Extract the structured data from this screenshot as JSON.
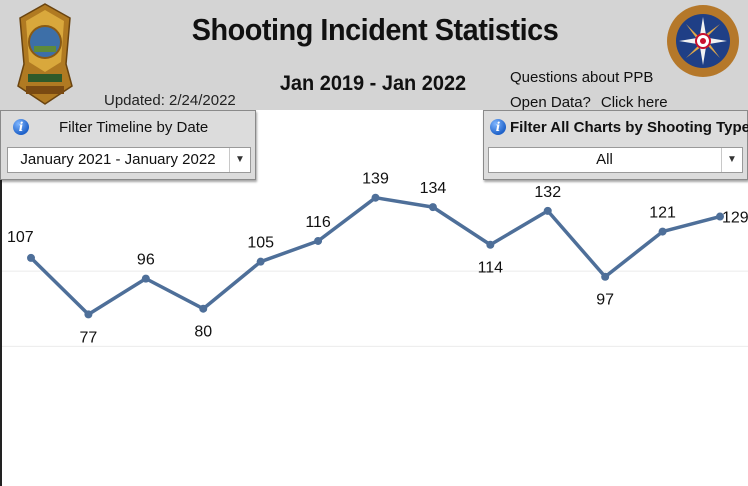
{
  "header": {
    "title": "Shooting Incident Statistics",
    "date_range": "Jan 2019 - Jan 2022",
    "updated": "Updated: 2/24/2022",
    "questions_line1": "Questions about PPB",
    "questions_line2": "Open Data?",
    "click_here": "Click here",
    "badge_logo_text": "PORTLAND POLICE",
    "seal_logo_text": "PORTLAND POLICE BUREAU · STRATEGIC SERVICES DIVISION"
  },
  "filters": {
    "timeline": {
      "title": "Filter Timeline by Date",
      "value": "January 2021 - January 2022",
      "info_icon": "info-icon",
      "arrow_icon": "chevron-down-icon"
    },
    "shooting_type": {
      "title": "Filter All Charts by Shooting Type",
      "value": "All",
      "info_icon": "info-icon",
      "arrow_icon": "chevron-down-icon"
    }
  },
  "colors": {
    "header_bg": "#d4d4d4",
    "line": "#4e6f99",
    "gridline": "#ebebeb"
  },
  "chart_data": {
    "type": "line",
    "title": "",
    "xlabel": "",
    "ylabel": "",
    "values": [
      107,
      77,
      96,
      80,
      105,
      116,
      139,
      134,
      114,
      132,
      97,
      121,
      129
    ],
    "data_labels": [
      "107",
      "77",
      "96",
      "80",
      "105",
      "116",
      "139",
      "134",
      "114",
      "132",
      "97",
      "121",
      "129"
    ],
    "ylim": [
      40,
      150
    ],
    "grid": true,
    "legend": "none"
  }
}
